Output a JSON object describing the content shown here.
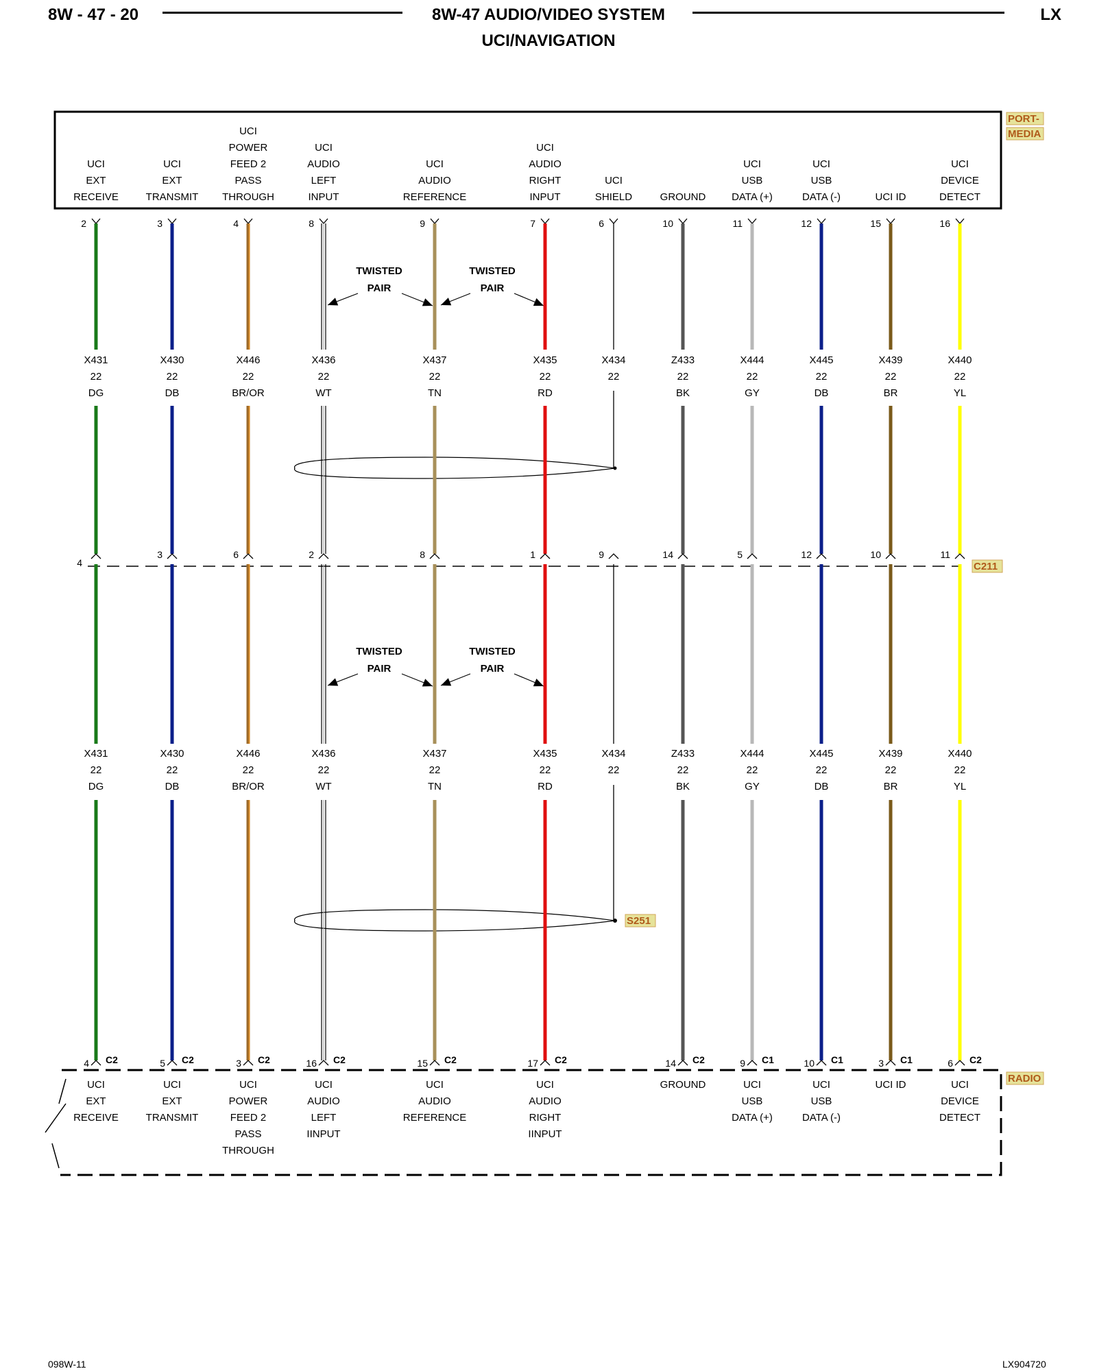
{
  "header": {
    "page_code": "8W - 47 - 20",
    "title": "8W-47 AUDIO/VIDEO SYSTEM",
    "subtitle": "UCI/NAVIGATION",
    "model": "LX"
  },
  "footer": {
    "left_code": "098W-11",
    "right_code": "LX904720"
  },
  "components": {
    "top": {
      "name": "PORT-\nMEDIA",
      "name_lines": [
        "PORT-",
        "MEDIA"
      ]
    },
    "connector_mid": "C211",
    "splice": "S251",
    "bottom": {
      "name": "RADIO"
    }
  },
  "twisted_pair_label": [
    "TWISTED",
    "PAIR"
  ],
  "circuits": [
    {
      "id": "ext-receive",
      "top_label": [
        "UCI",
        "EXT",
        "RECEIVE"
      ],
      "top_pin": "2",
      "wire": "X431",
      "gauge": "22",
      "color_code": "DG",
      "color": "#1a7a1a",
      "c211_pin": "4",
      "bottom_pin": "4",
      "bottom_conn": "C2",
      "bottom_label": [
        "UCI",
        "EXT",
        "RECEIVE"
      ]
    },
    {
      "id": "ext-transmit",
      "top_label": [
        "UCI",
        "EXT",
        "TRANSMIT"
      ],
      "top_pin": "3",
      "wire": "X430",
      "gauge": "22",
      "color_code": "DB",
      "color": "#0b1f8a",
      "c211_pin": "3",
      "bottom_pin": "5",
      "bottom_conn": "C2",
      "bottom_label": [
        "UCI",
        "EXT",
        "TRANSMIT"
      ]
    },
    {
      "id": "power-feed",
      "top_label": [
        "UCI",
        "POWER",
        "FEED 2",
        "PASS",
        "THROUGH"
      ],
      "top_pin": "4",
      "wire": "X446",
      "gauge": "22",
      "color_code": "BR/OR",
      "color": "#9c6a2a",
      "stripe": "#e8901e",
      "c211_pin": "6",
      "bottom_pin": "3",
      "bottom_conn": "C2",
      "bottom_label": [
        "UCI",
        "POWER",
        "FEED 2",
        "PASS",
        "THROUGH"
      ]
    },
    {
      "id": "audio-left",
      "top_label": [
        "UCI",
        "AUDIO",
        "LEFT",
        "INPUT"
      ],
      "top_pin": "8",
      "wire": "X436",
      "gauge": "22",
      "color_code": "WT",
      "color": "#ffffff",
      "c211_pin": "2",
      "bottom_pin": "16",
      "bottom_conn": "C2",
      "bottom_label": [
        "UCI",
        "AUDIO",
        "LEFT",
        "IINPUT"
      ]
    },
    {
      "id": "audio-ref",
      "top_label": [
        "UCI",
        "AUDIO",
        "REFERENCE"
      ],
      "top_pin": "9",
      "wire": "X437",
      "gauge": "22",
      "color_code": "TN",
      "color": "#a8905a",
      "c211_pin": "8",
      "bottom_pin": "15",
      "bottom_conn": "C2",
      "bottom_label": [
        "UCI",
        "AUDIO",
        "REFERENCE"
      ]
    },
    {
      "id": "audio-right",
      "top_label": [
        "UCI",
        "AUDIO",
        "RIGHT",
        "INPUT"
      ],
      "top_pin": "7",
      "wire": "X435",
      "gauge": "22",
      "color_code": "RD",
      "color": "#e01010",
      "c211_pin": "1",
      "bottom_pin": "17",
      "bottom_conn": "C2",
      "bottom_label": [
        "UCI",
        "AUDIO",
        "RIGHT",
        "IINPUT"
      ]
    },
    {
      "id": "shield",
      "top_label": [
        "UCI",
        "SHIELD"
      ],
      "top_pin": "6",
      "wire": "X434",
      "gauge": "22",
      "color_code": "",
      "color": "#000000",
      "c211_pin": "9",
      "bottom_pin": "",
      "bottom_conn": "",
      "bottom_label": []
    },
    {
      "id": "ground",
      "top_label": [
        "GROUND"
      ],
      "top_pin": "10",
      "wire": "Z433",
      "gauge": "22",
      "color_code": "BK",
      "color": "#555555",
      "c211_pin": "14",
      "bottom_pin": "14",
      "bottom_conn": "C2",
      "bottom_label": [
        "GROUND"
      ]
    },
    {
      "id": "usb-plus",
      "top_label": [
        "UCI",
        "USB",
        "DATA (+)"
      ],
      "top_pin": "11",
      "wire": "X444",
      "gauge": "22",
      "color_code": "GY",
      "color": "#b8b8b8",
      "c211_pin": "5",
      "bottom_pin": "9",
      "bottom_conn": "C1",
      "bottom_label": [
        "UCI",
        "USB",
        "DATA (+)"
      ]
    },
    {
      "id": "usb-minus",
      "top_label": [
        "UCI",
        "USB",
        "DATA (-)"
      ],
      "top_pin": "12",
      "wire": "X445",
      "gauge": "22",
      "color_code": "DB",
      "color": "#0b1f8a",
      "c211_pin": "12",
      "bottom_pin": "10",
      "bottom_conn": "C1",
      "bottom_label": [
        "UCI",
        "USB",
        "DATA (-)"
      ]
    },
    {
      "id": "uci-id",
      "top_label": [
        "UCI ID"
      ],
      "top_pin": "15",
      "wire": "X439",
      "gauge": "22",
      "color_code": "BR",
      "color": "#7a5a1a",
      "c211_pin": "10",
      "bottom_pin": "3",
      "bottom_conn": "C1",
      "bottom_label": [
        "UCI ID"
      ]
    },
    {
      "id": "device-detect",
      "top_label": [
        "UCI",
        "DEVICE",
        "DETECT"
      ],
      "top_pin": "16",
      "wire": "X440",
      "gauge": "22",
      "color_code": "YL",
      "color": "#ffff00",
      "c211_pin": "11",
      "bottom_pin": "6",
      "bottom_conn": "C2",
      "bottom_label": [
        "UCI",
        "DEVICE",
        "DETECT"
      ]
    }
  ]
}
